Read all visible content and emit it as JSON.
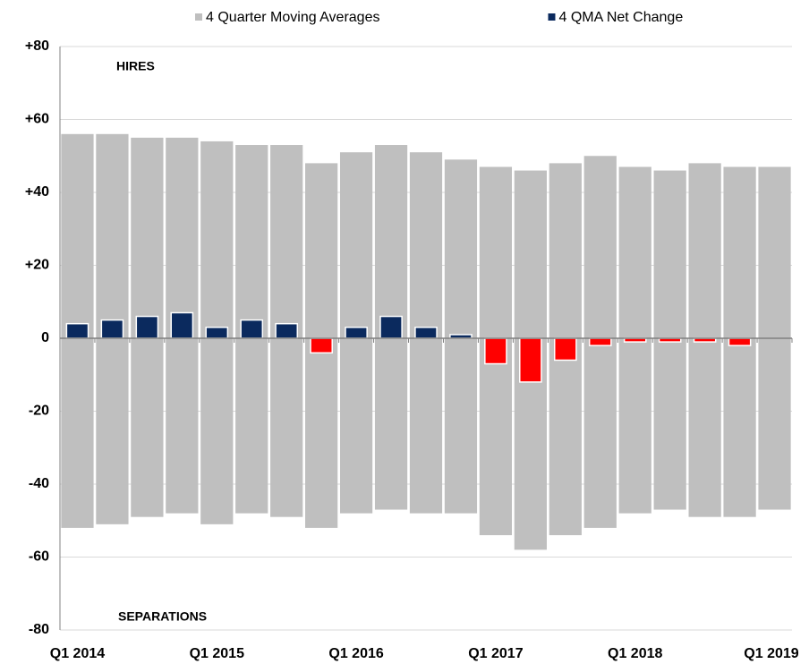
{
  "chart_data": {
    "type": "bar",
    "annotations": [
      "HIRES",
      "SEPARATIONS"
    ],
    "categories": [
      "Q1 2014",
      null,
      null,
      null,
      "Q1 2015",
      null,
      null,
      null,
      "Q1 2016",
      null,
      null,
      null,
      "Q1 2017",
      null,
      null,
      null,
      "Q1 2018",
      null,
      null,
      null,
      "Q1 2019"
    ],
    "series": [
      {
        "name": "4 Quarter Moving Averages",
        "color": "#bfbfbf",
        "values": [
          56,
          56,
          55,
          55,
          54,
          53,
          53,
          48,
          51,
          53,
          51,
          49,
          47,
          46,
          48,
          50,
          47,
          46,
          48,
          47,
          47
        ]
      },
      {
        "color": "#bfbfbf",
        "values": [
          -52,
          -51,
          -49,
          -48,
          -51,
          -48,
          -49,
          -52,
          -48,
          -47,
          -48,
          -48,
          -54,
          -58,
          -54,
          -52,
          -48,
          -47,
          -49,
          -49,
          -47
        ]
      },
      {
        "name": "4 QMA Net Change",
        "color": "#0b2a5e",
        "negative_color": "#ff0000",
        "values": [
          4,
          5,
          6,
          7,
          3,
          5,
          4,
          -4,
          3,
          6,
          3,
          1,
          -7,
          -12,
          -6,
          -2,
          -1,
          -1,
          -1,
          -2,
          0
        ]
      }
    ],
    "ylim": [
      -80,
      80
    ],
    "yticks": [
      {
        "value": 80,
        "label": "+80"
      },
      {
        "value": 60,
        "label": "+60"
      },
      {
        "value": 40,
        "label": "+40"
      },
      {
        "value": 20,
        "label": "+20"
      },
      0,
      -20,
      -40,
      -60,
      -80
    ],
    "negative_tick_color": "#ff0000",
    "grid": true
  }
}
